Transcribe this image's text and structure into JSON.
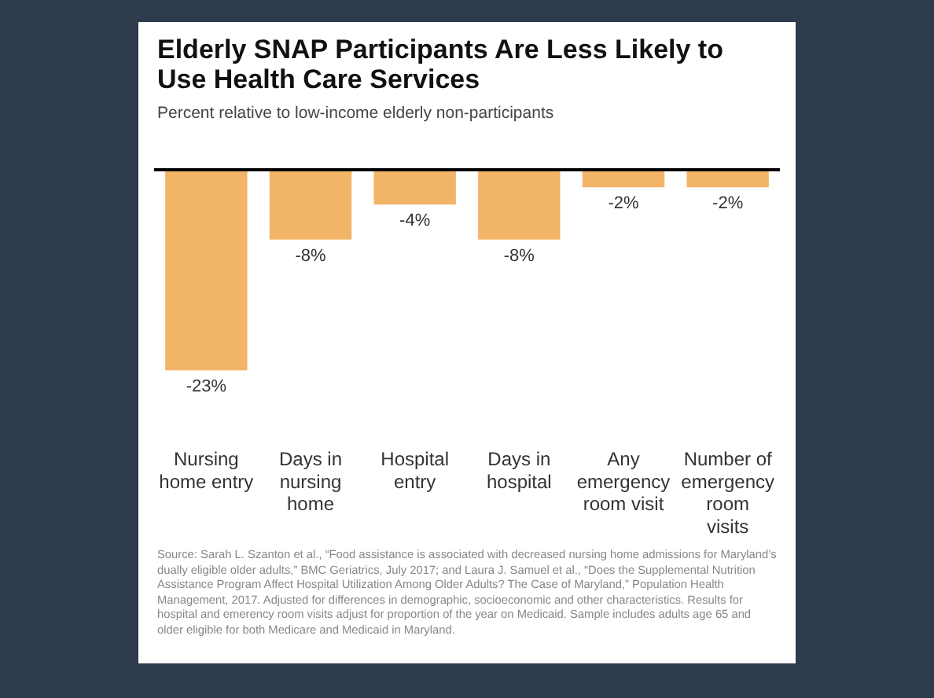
{
  "chart_data": {
    "type": "bar",
    "title": "Elderly SNAP Participants Are Less Likely to Use Health Care Services",
    "subtitle": "Percent relative to low-income elderly non-participants",
    "categories": [
      "Nursing home entry",
      "Days in nursing home",
      "Hospital entry",
      "Days in hospital",
      "Any emergency room visit",
      "Number of emergency room visits"
    ],
    "values": [
      -23,
      -8,
      -4,
      -8,
      -2,
      -2
    ],
    "value_labels": [
      "-23%",
      "-8%",
      "-4%",
      "-8%",
      "-2%",
      "-2%"
    ],
    "color": "#f2b568",
    "annotations": [
      "Source: Sarah L. Szanton et al., “Food assistance is associated with decreased nursing home admissions for Maryland’s dually eligible older adults,” BMC Geriatrics, July 2017; and Laura J. Samuel et al., “Does the Supplemental Nutrition Assistance Program Affect Hospital Utilization Among Older Adults? The Case of Maryland,” Population Health Management, 2017. Adjusted for differences in demographic, socioeconomic and other characteristics. Results for hospital and emerency room visits adjust for proportion of the year on Medicaid. Sample includes adults age 65 and older eligible for both Medicare and Medicaid in Maryland."
    ]
  }
}
